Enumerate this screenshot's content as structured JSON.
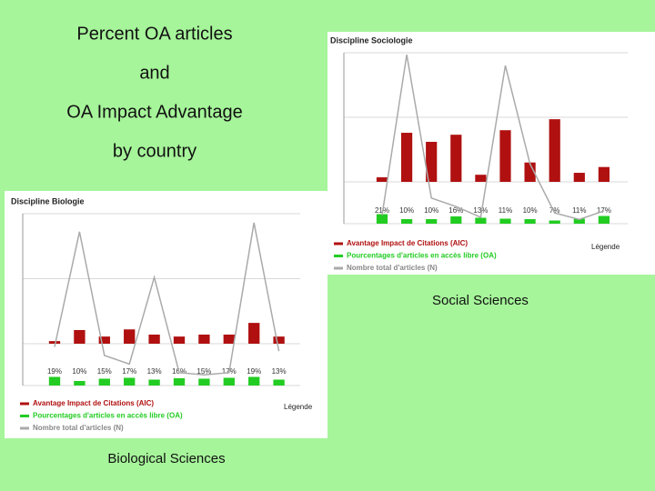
{
  "title_lines": [
    {
      "text": "Percent OA articles",
      "color": "#0a6b2a"
    },
    {
      "text": "and",
      "color": "#111111"
    },
    {
      "text": "OA Impact Advantage",
      "color": "#c0100c"
    },
    {
      "text": "by country",
      "color": "#111111"
    }
  ],
  "charts": [
    {
      "type": "bar",
      "title": "Discipline Sociologie",
      "caption": "Social Sciences",
      "legend_heading": "Légende",
      "series": [
        {
          "name": "Avantage Impact de Citations (AIC)",
          "color": "#b01010",
          "values": [
            0.07,
            0.76,
            0.62,
            0.73,
            0.11,
            0.8,
            0.3,
            0.97,
            0.14,
            0.23
          ],
          "ylim": [
            0,
            2
          ]
        },
        {
          "name": "Pourcentages d'articles en accès libre (OA)",
          "color": "#22cc22",
          "values": [
            21,
            10,
            10,
            16,
            13,
            11,
            10,
            7,
            11,
            17
          ],
          "value_labels": [
            "21%",
            "10%",
            "10%",
            "16%",
            "13%",
            "11%",
            "10%",
            "7%",
            "11%",
            "17%"
          ],
          "ylim": [
            0,
            50
          ]
        },
        {
          "name": "Nombre total d'articles (N)",
          "color": "#aaaaaa",
          "values": [
            2000,
            39536,
            6000,
            4000,
            1500,
            37000,
            14000,
            2500,
            1000,
            3000
          ],
          "ylim": [
            0,
            40000
          ]
        }
      ]
    },
    {
      "type": "bar",
      "title": "Discipline Biologie",
      "caption": "Biological Sciences",
      "legend_heading": "Légende",
      "series": [
        {
          "name": "Avantage Impact de Citations (AIC)",
          "color": "#b01010",
          "values": [
            0.04,
            0.21,
            0.11,
            0.22,
            0.14,
            0.11,
            0.14,
            0.14,
            0.32,
            0.11
          ],
          "ylim": [
            0,
            2
          ]
        },
        {
          "name": "Pourcentages d'articles en accès libre (OA)",
          "color": "#22cc22",
          "values": [
            19,
            10,
            15,
            17,
            13,
            16,
            15,
            17,
            19,
            13
          ],
          "value_labels": [
            "19%",
            "10%",
            "15%",
            "17%",
            "13%",
            "16%",
            "15%",
            "17%",
            "19%",
            "13%"
          ],
          "ylim": [
            0,
            50
          ]
        },
        {
          "name": "Nombre total d'articles (N)",
          "color": "#aaaaaa",
          "values": [
            9000,
            35800,
            7000,
            5000,
            25200,
            3000,
            2500,
            3000,
            37900,
            8000
          ],
          "ylim": [
            0,
            40000
          ]
        }
      ]
    }
  ]
}
